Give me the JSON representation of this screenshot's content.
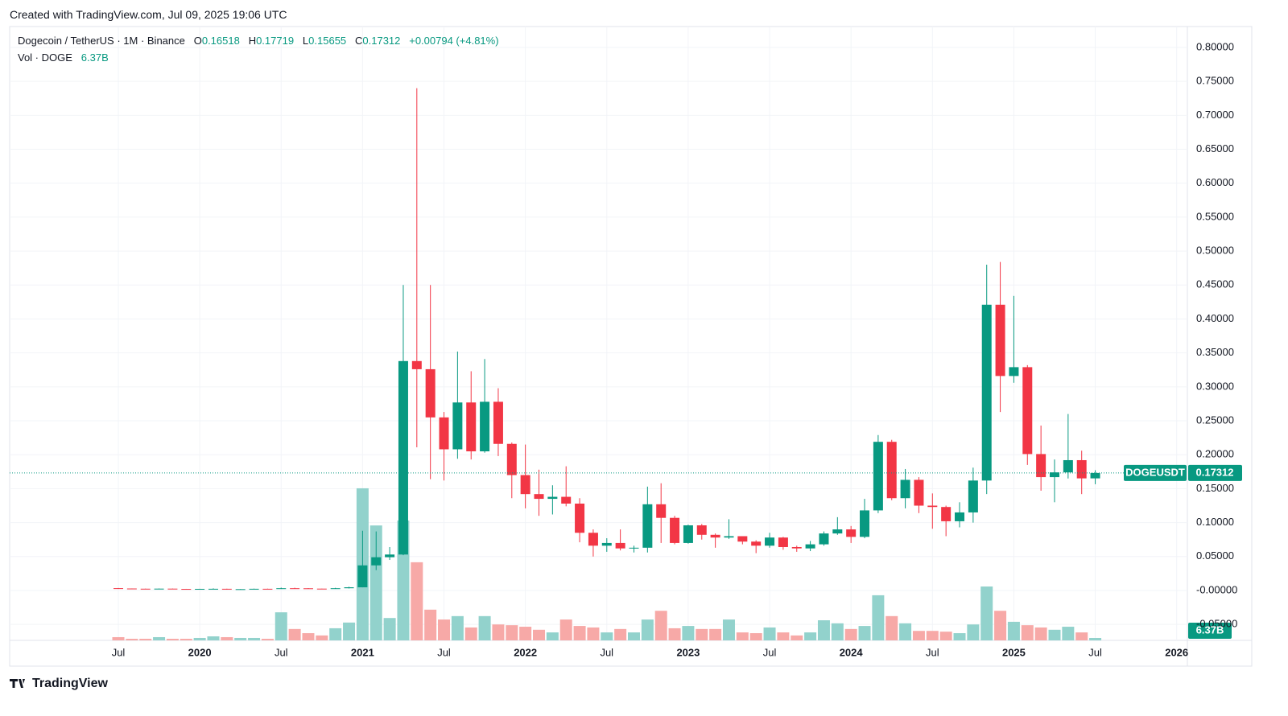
{
  "header": {
    "created": "Created with TradingView.com, Jul 09, 2025 19:06 UTC",
    "brand": "TradingView"
  },
  "chart_data": {
    "type": "candlestick",
    "title": "Dogecoin / TetherUS · 1M · Binance",
    "symbol": "DOGEUSDT",
    "ohlc_labels": [
      "O",
      "H",
      "L",
      "C"
    ],
    "change": "+0.00794 (+4.81%)",
    "volume_title": "Vol · DOGE",
    "volume_label": "6.37B",
    "up_color": "#089981",
    "down_color": "#f23645",
    "volume_up_color": "#92d2cc",
    "volume_down_color": "#f7a9a7",
    "grid": true,
    "x": [
      "2019-07",
      "2019-08",
      "2019-09",
      "2019-10",
      "2019-11",
      "2019-12",
      "2020-01",
      "2020-02",
      "2020-03",
      "2020-04",
      "2020-05",
      "2020-06",
      "2020-07",
      "2020-08",
      "2020-09",
      "2020-10",
      "2020-11",
      "2020-12",
      "2021-01",
      "2021-02",
      "2021-03",
      "2021-04",
      "2021-05",
      "2021-06",
      "2021-07",
      "2021-08",
      "2021-09",
      "2021-10",
      "2021-11",
      "2021-12",
      "2022-01",
      "2022-02",
      "2022-03",
      "2022-04",
      "2022-05",
      "2022-06",
      "2022-07",
      "2022-08",
      "2022-09",
      "2022-10",
      "2022-11",
      "2022-12",
      "2023-01",
      "2023-02",
      "2023-03",
      "2023-04",
      "2023-05",
      "2023-06",
      "2023-07",
      "2023-08",
      "2023-09",
      "2023-10",
      "2023-11",
      "2023-12",
      "2024-01",
      "2024-02",
      "2024-03",
      "2024-04",
      "2024-05",
      "2024-06",
      "2024-07",
      "2024-08",
      "2024-09",
      "2024-10",
      "2024-11",
      "2024-12",
      "2025-01",
      "2025-02",
      "2025-03",
      "2025-04",
      "2025-05",
      "2025-06",
      "2025-07"
    ],
    "open": [
      0.0034,
      0.0029,
      0.0026,
      0.0024,
      0.0027,
      0.0023,
      0.002,
      0.0024,
      0.0025,
      0.0018,
      0.002,
      0.0025,
      0.00248,
      0.0033,
      0.0032,
      0.0027,
      0.0026,
      0.0033,
      0.0047,
      0.037,
      0.049,
      0.053,
      0.338,
      0.326,
      0.255,
      0.208,
      0.277,
      0.205,
      0.278,
      0.216,
      0.17,
      0.142,
      0.135,
      0.138,
      0.128,
      0.085,
      0.066,
      0.07,
      0.062,
      0.063,
      0.127,
      0.107,
      0.07,
      0.096,
      0.082,
      0.078,
      0.08,
      0.072,
      0.066,
      0.078,
      0.064,
      0.062,
      0.068,
      0.084,
      0.09,
      0.079,
      0.118,
      0.219,
      0.136,
      0.163,
      0.125,
      0.123,
      0.102,
      0.115,
      0.162,
      0.421,
      0.316,
      0.329,
      0.201,
      0.167,
      0.174,
      0.192,
      0.16518
    ],
    "high": [
      0.0037,
      0.003,
      0.0027,
      0.0029,
      0.0028,
      0.0024,
      0.0025,
      0.0031,
      0.0026,
      0.0021,
      0.0027,
      0.0027,
      0.0042,
      0.004,
      0.0034,
      0.0028,
      0.0039,
      0.0055,
      0.088,
      0.087,
      0.064,
      0.45,
      0.74,
      0.45,
      0.263,
      0.352,
      0.323,
      0.341,
      0.298,
      0.218,
      0.215,
      0.178,
      0.155,
      0.183,
      0.136,
      0.09,
      0.077,
      0.09,
      0.066,
      0.153,
      0.158,
      0.11,
      0.097,
      0.098,
      0.084,
      0.105,
      0.08,
      0.074,
      0.085,
      0.079,
      0.066,
      0.073,
      0.087,
      0.108,
      0.095,
      0.135,
      0.229,
      0.222,
      0.179,
      0.167,
      0.143,
      0.125,
      0.13,
      0.181,
      0.48,
      0.484,
      0.434,
      0.332,
      0.243,
      0.193,
      0.26,
      0.206,
      0.17719
    ],
    "low": [
      0.0027,
      0.0025,
      0.0022,
      0.0023,
      0.0022,
      0.0019,
      0.002,
      0.0023,
      0.0012,
      0.0017,
      0.0019,
      0.0024,
      0.0024,
      0.003,
      0.0025,
      0.0025,
      0.0025,
      0.003,
      0.0046,
      0.03,
      0.045,
      0.052,
      0.211,
      0.164,
      0.162,
      0.194,
      0.193,
      0.203,
      0.198,
      0.136,
      0.121,
      0.11,
      0.112,
      0.124,
      0.071,
      0.05,
      0.057,
      0.059,
      0.056,
      0.056,
      0.07,
      0.068,
      0.069,
      0.075,
      0.063,
      0.076,
      0.068,
      0.055,
      0.063,
      0.06,
      0.057,
      0.058,
      0.066,
      0.082,
      0.07,
      0.077,
      0.114,
      0.133,
      0.121,
      0.114,
      0.091,
      0.08,
      0.093,
      0.1,
      0.142,
      0.263,
      0.306,
      0.185,
      0.147,
      0.13,
      0.165,
      0.142,
      0.15655
    ],
    "close": [
      0.0029,
      0.0026,
      0.0024,
      0.0027,
      0.0023,
      0.002,
      0.0024,
      0.0025,
      0.0018,
      0.002,
      0.0025,
      0.00248,
      0.0033,
      0.0032,
      0.0027,
      0.0026,
      0.0033,
      0.0047,
      0.037,
      0.049,
      0.053,
      0.338,
      0.326,
      0.255,
      0.208,
      0.277,
      0.205,
      0.278,
      0.216,
      0.17,
      0.142,
      0.135,
      0.138,
      0.128,
      0.085,
      0.066,
      0.07,
      0.062,
      0.063,
      0.127,
      0.107,
      0.07,
      0.096,
      0.082,
      0.078,
      0.08,
      0.072,
      0.066,
      0.078,
      0.064,
      0.062,
      0.068,
      0.084,
      0.09,
      0.079,
      0.118,
      0.219,
      0.136,
      0.163,
      0.125,
      0.123,
      0.102,
      0.115,
      0.162,
      0.421,
      0.316,
      0.329,
      0.201,
      0.167,
      0.174,
      0.192,
      0.16518,
      0.17312
    ],
    "volume": [
      8.5,
      4.2,
      4.2,
      8.5,
      4.2,
      4.2,
      6.4,
      10.6,
      8.5,
      6.4,
      6.4,
      4.2,
      74,
      30,
      19,
      13,
      32,
      47,
      401,
      303,
      59,
      316,
      206,
      81,
      55,
      64,
      34,
      64,
      42,
      40,
      36,
      28,
      21,
      55,
      38,
      34,
      21,
      30,
      21,
      55,
      78,
      32,
      38,
      30,
      30,
      55,
      21,
      19,
      34,
      21,
      13,
      21,
      53,
      45,
      30,
      38,
      119,
      64,
      45,
      25,
      25,
      23,
      19,
      42,
      142,
      78,
      49,
      40,
      34,
      28,
      36,
      21,
      6.37
    ],
    "ylim": [
      -0.0735,
      0.8308
    ],
    "yticks": [
      {
        "value": 0.8,
        "label": "0.80000"
      },
      {
        "value": 0.75,
        "label": "0.75000"
      },
      {
        "value": 0.7,
        "label": "0.70000"
      },
      {
        "value": 0.65,
        "label": "0.65000"
      },
      {
        "value": 0.6,
        "label": "0.60000"
      },
      {
        "value": 0.55,
        "label": "0.55000"
      },
      {
        "value": 0.5,
        "label": "0.50000"
      },
      {
        "value": 0.45,
        "label": "0.45000"
      },
      {
        "value": 0.4,
        "label": "0.40000"
      },
      {
        "value": 0.35,
        "label": "0.35000"
      },
      {
        "value": 0.3,
        "label": "0.30000"
      },
      {
        "value": 0.25,
        "label": "0.25000"
      },
      {
        "value": 0.2,
        "label": "0.20000"
      },
      {
        "value": 0.15,
        "label": "0.15000"
      },
      {
        "value": 0.1,
        "label": "0.10000"
      },
      {
        "value": 0.05,
        "label": "0.05000"
      },
      {
        "value": 0,
        "label": "-0.00000"
      },
      {
        "value": -0.05,
        "label": "-0.05000"
      }
    ],
    "volume_lim": [
      0,
      420
    ],
    "xticks": [
      {
        "value": "2019-07",
        "label": "Jul"
      },
      {
        "value": "2020-01",
        "label": "2020"
      },
      {
        "value": "2020-07",
        "label": "Jul"
      },
      {
        "value": "2021-01",
        "label": "2021"
      },
      {
        "value": "2021-07",
        "label": "Jul"
      },
      {
        "value": "2022-01",
        "label": "2022"
      },
      {
        "value": "2022-07",
        "label": "Jul"
      },
      {
        "value": "2023-01",
        "label": "2023"
      },
      {
        "value": "2023-07",
        "label": "Jul"
      },
      {
        "value": "2024-01",
        "label": "2024"
      },
      {
        "value": "2024-07",
        "label": "Jul"
      },
      {
        "value": "2025-01",
        "label": "2025"
      },
      {
        "value": "2025-07",
        "label": "Jul"
      },
      {
        "value": "2026-01",
        "label": "2026"
      }
    ]
  }
}
